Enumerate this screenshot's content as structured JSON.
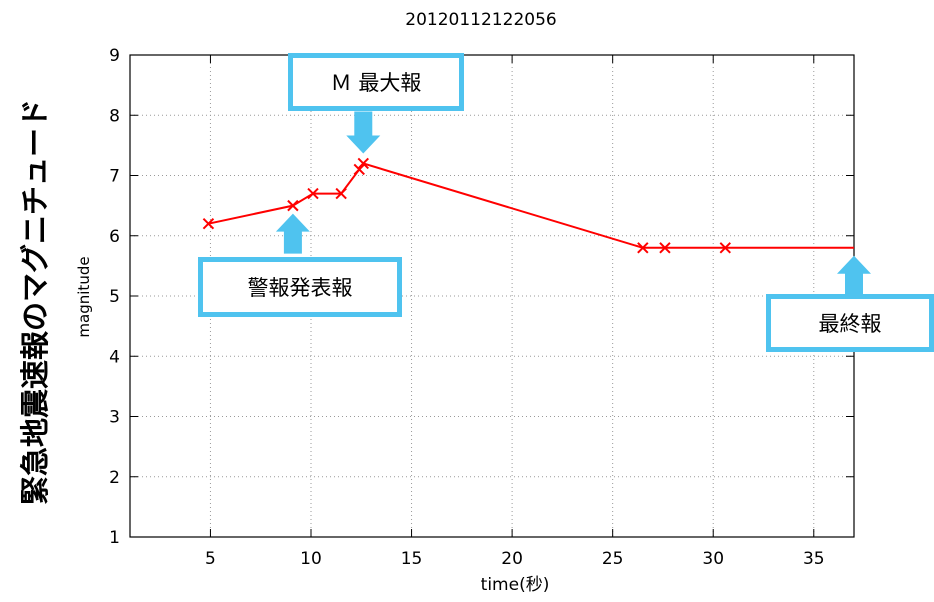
{
  "chart_data": {
    "type": "line",
    "title": "20120112122056",
    "xlabel": "time(秒)",
    "ylabel": "magnitude",
    "side_title": "緊急地震速報のマグニチュード",
    "xlim": [
      1,
      37
    ],
    "ylim": [
      1,
      9
    ],
    "xticks": [
      5,
      10,
      15,
      20,
      25,
      30,
      35
    ],
    "yticks": [
      1,
      2,
      3,
      4,
      5,
      6,
      7,
      8,
      9
    ],
    "grid": true,
    "line_color": "#ff0000",
    "series": [
      {
        "x": [
          4.9,
          9.1,
          10.1,
          11.5,
          12.4,
          12.6,
          26.5,
          27.6,
          30.6,
          37
        ],
        "y": [
          6.2,
          6.5,
          6.7,
          6.7,
          7.1,
          7.2,
          5.8,
          5.8,
          5.8,
          5.8
        ],
        "markers": [
          true,
          true,
          true,
          true,
          true,
          true,
          true,
          true,
          true,
          false
        ]
      }
    ],
    "annotations": [
      {
        "id": "max",
        "text": "Ｍ 最大報",
        "point_x": 12.6,
        "point_y": 7.2,
        "arrow": "down"
      },
      {
        "id": "warning",
        "text": "警報発表報",
        "point_x": 9.1,
        "point_y": 6.5,
        "arrow": "up"
      },
      {
        "id": "final",
        "text": "最終報",
        "point_x": 37,
        "point_y": 5.8,
        "arrow": "up"
      }
    ]
  },
  "style": {
    "arrow_color": "#4fc3ef",
    "box_border": "#4fc3ef"
  }
}
